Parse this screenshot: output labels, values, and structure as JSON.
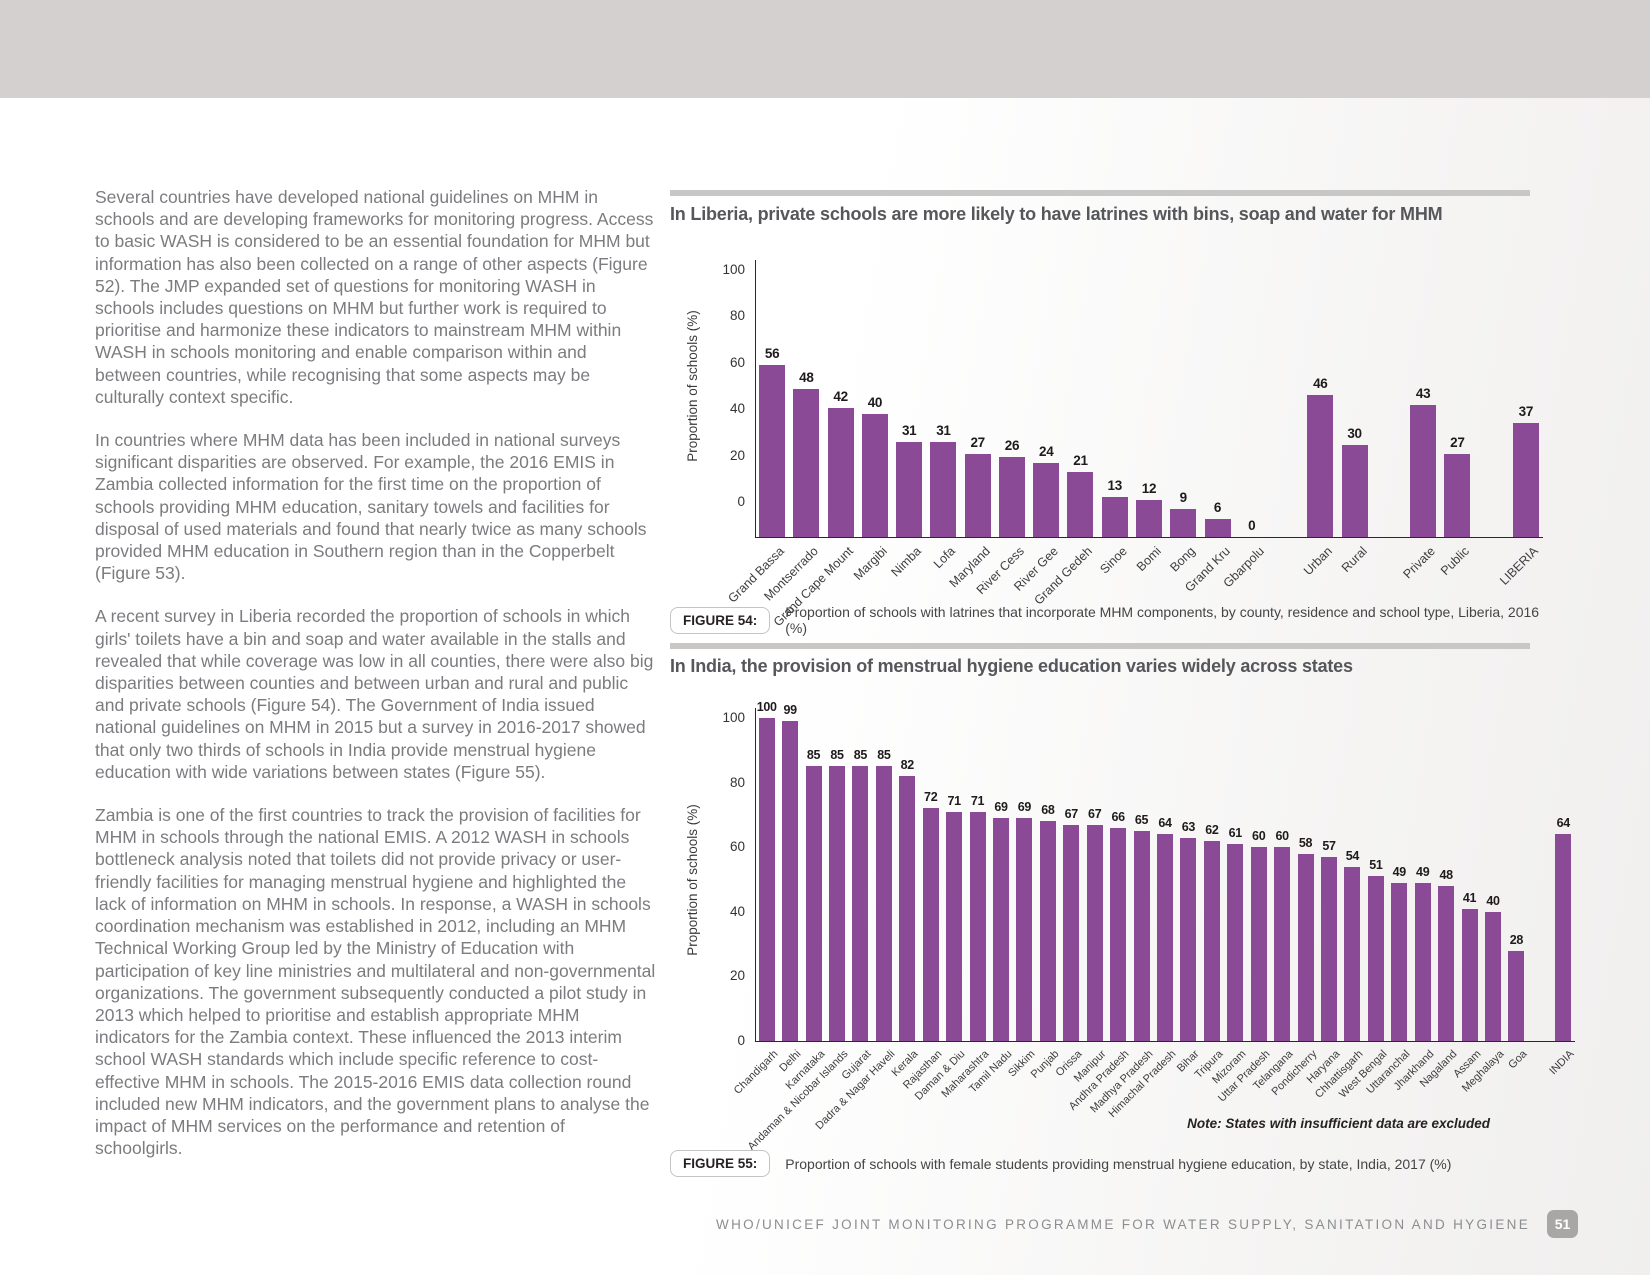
{
  "article": {
    "paragraphs": [
      "Several countries have developed national guidelines on MHM in schools and are developing frameworks for monitoring progress. Access to basic WASH is considered to be an essential foundation for MHM but information has also been collected on a range of other aspects (Figure 52). The JMP expanded set of questions for monitoring WASH in schools includes questions on MHM but further work is required to prioritise and harmonize these indicators to mainstream MHM within WASH in schools monitoring and enable comparison within and between countries, while recognising that some aspects may be culturally context specific.",
      "In countries where MHM data has been included in national surveys significant disparities are observed. For example, the 2016 EMIS in Zambia collected information for the first time on the proportion of schools providing MHM education, sanitary towels and facilities for disposal of used materials and found that nearly twice as many schools provided MHM education in Southern region than in the Copperbelt (Figure 53).",
      "A recent survey in Liberia recorded the proportion of schools in which girls' toilets have a bin and soap and water available in the stalls and revealed that while coverage was low in all counties, there were also big disparities between counties and between urban and rural and public and private schools (Figure 54). The Government of India issued national guidelines on MHM in 2015 but a survey in 2016-2017 showed that only two thirds of schools in India provide menstrual hygiene education with wide variations between states (Figure 55).",
      "Zambia is one of the first countries to track the provision of facilities for MHM in schools through the national EMIS. A 2012 WASH in schools bottleneck analysis noted that toilets did not provide privacy or user-friendly facilities for managing menstrual hygiene and highlighted the lack of information on MHM in schools. In response, a WASH in schools coordination mechanism was established in 2012, including an MHM Technical Working Group led by the Ministry of Education with participation of key line ministries and multilateral and non-governmental organizations. The government subsequently conducted a pilot study in 2013 which helped to prioritise and establish appropriate MHM indicators for the Zambia context. These influenced the 2013 interim school WASH standards which include specific reference to cost-effective MHM in schools. The 2015-2016 EMIS data collection round included new MHM indicators, and the government plans to analyse the impact of MHM services on the performance and retention of schoolgirls."
    ]
  },
  "figures": [
    {
      "title": "In Liberia, private schools are more likely to have latrines with bins, soap and water for MHM",
      "label": "FIGURE 54:",
      "caption": "Proportion of schools with latrines that incorporate MHM components, by county, residence and school type, Liberia, 2016 (%)"
    },
    {
      "title": "In India, the provision of menstrual hygiene education varies widely across states",
      "label": "FIGURE 55:",
      "caption": "Proportion of schools with female students providing menstrual hygiene education, by state, India, 2017 (%)",
      "note": "Note: States with insufficient data are excluded"
    }
  ],
  "chart_data": [
    {
      "type": "bar",
      "title": "In Liberia, private schools are more likely to have latrines with bins, soap and water for MHM",
      "xlabel": "",
      "ylabel": "Proportion of schools (%)",
      "ylim": [
        0,
        100
      ],
      "yticks": [
        0,
        20,
        40,
        60,
        80,
        100
      ],
      "grid": false,
      "legend": "none",
      "bar_color": "#8b4a95",
      "categories": [
        "Grand Bassa",
        "Montserrado",
        "Grand Cape Mount",
        "Margibi",
        "Nimba",
        "Lofa",
        "Maryland",
        "River Cess",
        "River Gee",
        "Grand Gedeh",
        "Sinoe",
        "Bomi",
        "Bong",
        "Grand Kru",
        "Gbarpolu",
        null,
        "Urban",
        "Rural",
        null,
        "Private",
        "Public",
        null,
        "LIBERIA"
      ],
      "values": [
        56,
        48,
        42,
        40,
        31,
        31,
        27,
        26,
        24,
        21,
        13,
        12,
        9,
        6,
        0,
        null,
        46,
        30,
        null,
        43,
        27,
        null,
        37
      ]
    },
    {
      "type": "bar",
      "title": "In India, the provision of menstrual hygiene education varies widely across states",
      "xlabel": "",
      "ylabel": "Proportion of schools (%)",
      "ylim": [
        0,
        100
      ],
      "yticks": [
        0,
        20,
        40,
        60,
        80,
        100
      ],
      "grid": false,
      "legend": "none",
      "bar_color": "#8b4a95",
      "categories": [
        "Chandigarh",
        "Delhi",
        "Karnataka",
        "Andaman & Nicobar Islands",
        "Gujarat",
        "Dadra & Nagar Haveli",
        "Kerala",
        "Rajasthan",
        "Daman & Diu",
        "Maharashtra",
        "Tamil Nadu",
        "Sikkim",
        "Punjab",
        "Orissa",
        "Manipur",
        "Andhra Pradesh",
        "Madhya Pradesh",
        "Himachal Pradesh",
        "Bihar",
        "Tripura",
        "Mizoram",
        "Uttar Pradesh",
        "Telangana",
        "Pondicherry",
        "Haryana",
        "Chhattisgarh",
        "West Bengal",
        "Uttaranchal",
        "Jharkhand",
        "Nagaland",
        "Assam",
        "Meghalaya",
        "Goa",
        null,
        "INDIA"
      ],
      "values": [
        100,
        99,
        85,
        85,
        85,
        85,
        82,
        72,
        71,
        71,
        69,
        69,
        68,
        67,
        67,
        66,
        65,
        64,
        63,
        62,
        61,
        60,
        60,
        58,
        57,
        54,
        51,
        49,
        49,
        48,
        41,
        40,
        28,
        null,
        64
      ]
    }
  ],
  "footer": {
    "text": "WHO/UNICEF JOINT MONITORING PROGRAMME FOR WATER SUPPLY, SANITATION AND HYGIENE",
    "page_number": "51"
  }
}
